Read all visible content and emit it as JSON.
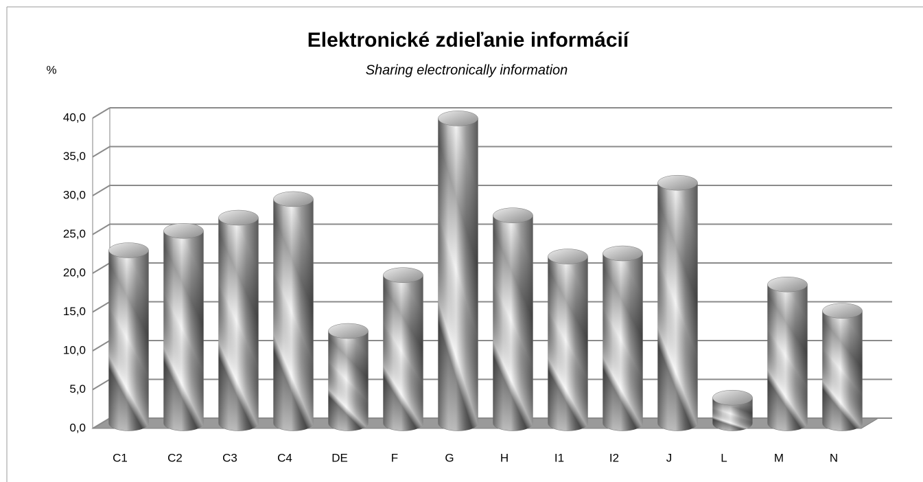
{
  "chart_data": {
    "type": "bar",
    "title": "Elektronické zdieľanie informácií",
    "subtitle": "Sharing electronically information",
    "y_label": "%",
    "categories": [
      "C1",
      "C2",
      "C3",
      "C4",
      "DE",
      "F",
      "G",
      "H",
      "I1",
      "I2",
      "J",
      "L",
      "M",
      "N"
    ],
    "values": [
      22.3,
      24.8,
      26.5,
      28.9,
      11.9,
      19.1,
      39.3,
      26.8,
      21.5,
      21.9,
      31.0,
      3.3,
      17.9,
      14.5
    ],
    "color": "#a0a0a0",
    "ylim": [
      0,
      40
    ],
    "yticks": [
      {
        "value": 0,
        "label": "0,0"
      },
      {
        "value": 5,
        "label": "5,0"
      },
      {
        "value": 10,
        "label": "10,0"
      },
      {
        "value": 15,
        "label": "15,0"
      },
      {
        "value": 20,
        "label": "20,0"
      },
      {
        "value": 25,
        "label": "25,0"
      },
      {
        "value": 30,
        "label": "30,0"
      },
      {
        "value": 35,
        "label": "35,0"
      },
      {
        "value": 40,
        "label": "40,0"
      }
    ],
    "grid": true
  }
}
